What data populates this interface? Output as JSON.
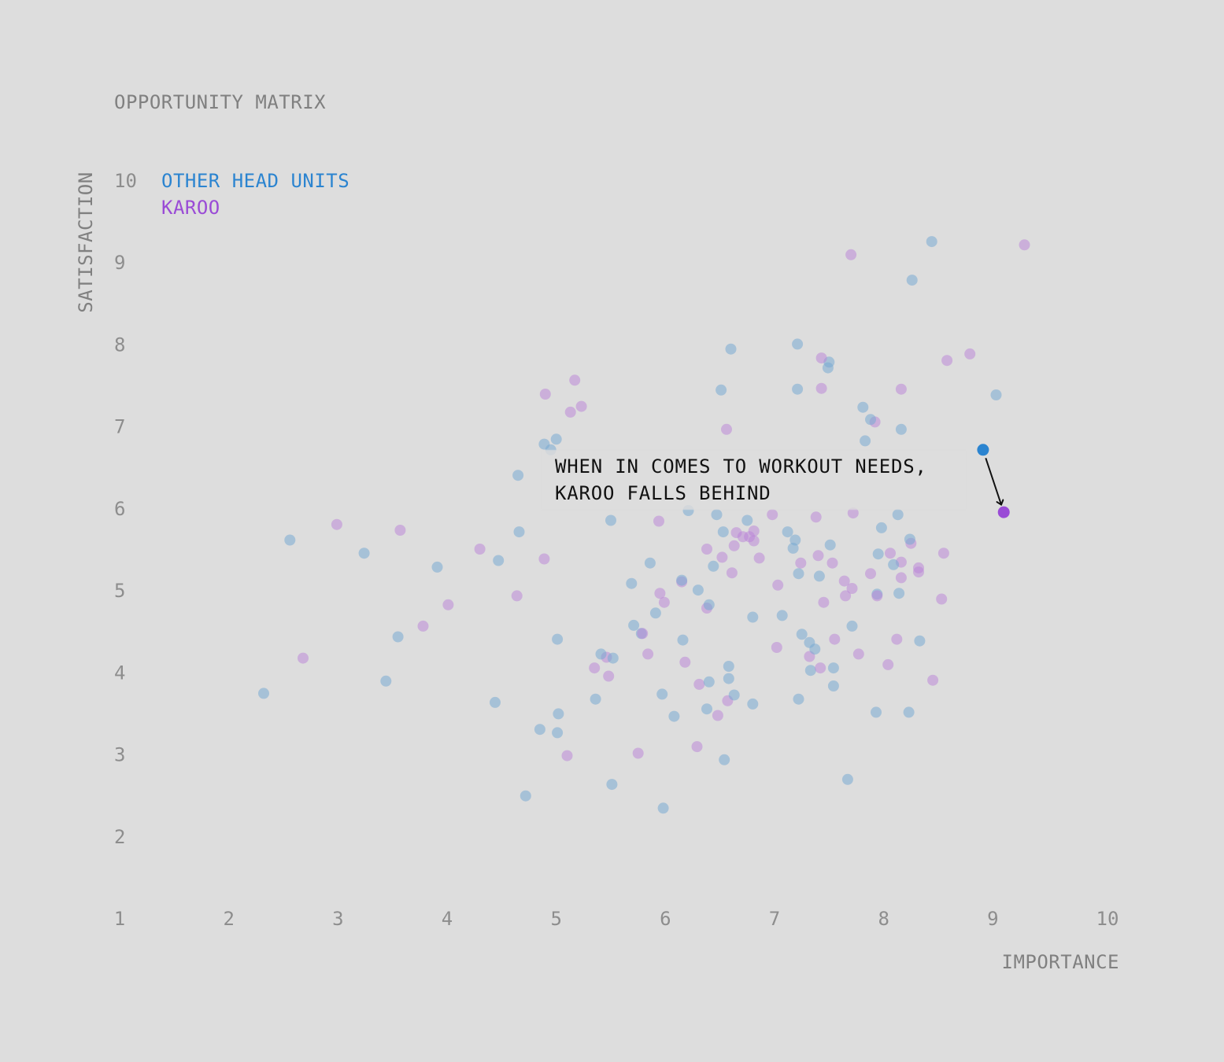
{
  "chart_data": {
    "type": "scatter",
    "title": "OPPORTUNITY MATRIX",
    "xlabel": "IMPORTANCE",
    "ylabel": "SATISFACTION",
    "xlim": [
      1,
      10
    ],
    "ylim": [
      1,
      10
    ],
    "xticks": [
      "1",
      "2",
      "3",
      "4",
      "5",
      "6",
      "7",
      "8",
      "9",
      "10"
    ],
    "yticks": [
      "2",
      "3",
      "4",
      "5",
      "6",
      "7",
      "8",
      "9",
      "10"
    ],
    "grid": false,
    "legend_position": "top-left",
    "colors": {
      "other": "#2b84d0",
      "karoo": "#9a4bd6",
      "arrow": "#111111"
    },
    "series": [
      {
        "name": "OTHER HEAD UNITS",
        "points": [
          [
            2.32,
            3.75
          ],
          [
            2.56,
            5.62
          ],
          [
            3.24,
            5.46
          ],
          [
            3.44,
            3.9
          ],
          [
            3.55,
            4.44
          ],
          [
            3.91,
            5.29
          ],
          [
            4.44,
            3.64
          ],
          [
            4.47,
            5.37
          ],
          [
            4.65,
            6.41
          ],
          [
            4.66,
            5.72
          ],
          [
            4.72,
            2.5
          ],
          [
            4.85,
            3.31
          ],
          [
            4.89,
            6.79
          ],
          [
            4.95,
            6.72
          ],
          [
            5.0,
            6.85
          ],
          [
            5.01,
            3.27
          ],
          [
            5.02,
            3.5
          ],
          [
            5.01,
            4.41
          ],
          [
            5.36,
            3.68
          ],
          [
            5.41,
            4.23
          ],
          [
            5.5,
            5.86
          ],
          [
            5.51,
            2.64
          ],
          [
            5.52,
            4.18
          ],
          [
            5.69,
            5.09
          ],
          [
            5.71,
            4.58
          ],
          [
            5.78,
            4.48
          ],
          [
            5.86,
            5.34
          ],
          [
            5.91,
            4.73
          ],
          [
            5.97,
            3.74
          ],
          [
            5.98,
            2.35
          ],
          [
            6.08,
            3.47
          ],
          [
            6.15,
            5.13
          ],
          [
            6.16,
            4.4
          ],
          [
            6.21,
            5.98
          ],
          [
            6.3,
            5.01
          ],
          [
            6.38,
            3.56
          ],
          [
            6.4,
            4.83
          ],
          [
            6.4,
            3.89
          ],
          [
            6.44,
            5.3
          ],
          [
            6.47,
            5.93
          ],
          [
            6.51,
            7.45
          ],
          [
            6.53,
            5.72
          ],
          [
            6.54,
            2.94
          ],
          [
            6.58,
            4.08
          ],
          [
            6.58,
            3.93
          ],
          [
            6.6,
            7.95
          ],
          [
            6.63,
            3.73
          ],
          [
            6.75,
            5.86
          ],
          [
            6.8,
            4.68
          ],
          [
            6.8,
            3.62
          ],
          [
            7.07,
            4.7
          ],
          [
            7.12,
            5.72
          ],
          [
            7.17,
            5.52
          ],
          [
            7.19,
            5.62
          ],
          [
            7.21,
            8.01
          ],
          [
            7.21,
            7.46
          ],
          [
            7.22,
            3.68
          ],
          [
            7.22,
            5.21
          ],
          [
            7.25,
            4.47
          ],
          [
            7.32,
            4.37
          ],
          [
            7.33,
            4.03
          ],
          [
            7.37,
            4.29
          ],
          [
            7.41,
            5.18
          ],
          [
            7.49,
            7.72
          ],
          [
            7.5,
            7.79
          ],
          [
            7.51,
            5.56
          ],
          [
            7.54,
            4.06
          ],
          [
            7.54,
            3.84
          ],
          [
            7.67,
            2.7
          ],
          [
            7.71,
            4.57
          ],
          [
            7.81,
            7.24
          ],
          [
            7.83,
            6.83
          ],
          [
            7.88,
            7.09
          ],
          [
            7.93,
            3.52
          ],
          [
            7.94,
            4.96
          ],
          [
            7.95,
            5.45
          ],
          [
            7.98,
            5.77
          ],
          [
            8.09,
            5.32
          ],
          [
            8.13,
            5.93
          ],
          [
            8.14,
            4.97
          ],
          [
            8.16,
            6.97
          ],
          [
            8.23,
            3.52
          ],
          [
            8.24,
            5.63
          ],
          [
            8.26,
            8.79
          ],
          [
            8.33,
            4.39
          ],
          [
            8.44,
            9.26
          ],
          [
            9.03,
            7.39
          ]
        ]
      },
      {
        "name": "KAROO",
        "points": [
          [
            2.68,
            4.18
          ],
          [
            2.99,
            5.81
          ],
          [
            3.57,
            5.74
          ],
          [
            3.78,
            4.57
          ],
          [
            4.01,
            4.83
          ],
          [
            4.3,
            5.51
          ],
          [
            4.64,
            4.94
          ],
          [
            4.89,
            5.39
          ],
          [
            4.9,
            7.4
          ],
          [
            5.1,
            2.99
          ],
          [
            5.13,
            7.18
          ],
          [
            5.17,
            7.57
          ],
          [
            5.23,
            7.25
          ],
          [
            5.35,
            4.06
          ],
          [
            5.46,
            4.19
          ],
          [
            5.48,
            3.96
          ],
          [
            5.75,
            3.02
          ],
          [
            5.79,
            4.48
          ],
          [
            5.84,
            4.23
          ],
          [
            5.94,
            5.85
          ],
          [
            5.95,
            4.97
          ],
          [
            5.99,
            4.86
          ],
          [
            6.15,
            5.11
          ],
          [
            6.18,
            4.13
          ],
          [
            6.29,
            3.1
          ],
          [
            6.31,
            3.86
          ],
          [
            6.38,
            4.79
          ],
          [
            6.38,
            5.51
          ],
          [
            6.48,
            3.48
          ],
          [
            6.52,
            5.41
          ],
          [
            6.56,
            6.97
          ],
          [
            6.57,
            3.66
          ],
          [
            6.61,
            5.22
          ],
          [
            6.63,
            5.55
          ],
          [
            6.65,
            5.71
          ],
          [
            6.71,
            5.66
          ],
          [
            6.77,
            5.66
          ],
          [
            6.81,
            5.73
          ],
          [
            6.81,
            5.61
          ],
          [
            6.86,
            5.4
          ],
          [
            6.98,
            5.93
          ],
          [
            7.02,
            4.31
          ],
          [
            7.03,
            5.07
          ],
          [
            7.24,
            5.34
          ],
          [
            7.32,
            4.2
          ],
          [
            7.38,
            5.9
          ],
          [
            7.4,
            5.43
          ],
          [
            7.42,
            4.06
          ],
          [
            7.43,
            7.84
          ],
          [
            7.43,
            7.47
          ],
          [
            7.45,
            4.86
          ],
          [
            7.53,
            5.34
          ],
          [
            7.55,
            4.41
          ],
          [
            7.64,
            5.12
          ],
          [
            7.65,
            4.94
          ],
          [
            7.7,
            9.1
          ],
          [
            7.71,
            5.03
          ],
          [
            7.72,
            5.95
          ],
          [
            7.77,
            4.23
          ],
          [
            7.88,
            5.21
          ],
          [
            7.92,
            7.06
          ],
          [
            7.94,
            4.94
          ],
          [
            8.04,
            4.1
          ],
          [
            8.06,
            5.46
          ],
          [
            8.12,
            4.41
          ],
          [
            8.16,
            7.46
          ],
          [
            8.16,
            5.35
          ],
          [
            8.16,
            5.16
          ],
          [
            8.25,
            5.58
          ],
          [
            8.32,
            5.28
          ],
          [
            8.32,
            5.23
          ],
          [
            8.45,
            3.91
          ],
          [
            8.53,
            4.9
          ],
          [
            8.55,
            5.46
          ],
          [
            8.58,
            7.81
          ],
          [
            8.79,
            7.89
          ],
          [
            9.29,
            9.22
          ]
        ]
      }
    ],
    "highlight": {
      "other": {
        "x": 8.91,
        "y": 6.72
      },
      "karoo": {
        "x": 9.1,
        "y": 5.96
      }
    },
    "annotation": {
      "lines": [
        "WHEN IN COMES TO WORKOUT NEEDS,",
        "KAROO FALLS BEHIND"
      ]
    }
  }
}
